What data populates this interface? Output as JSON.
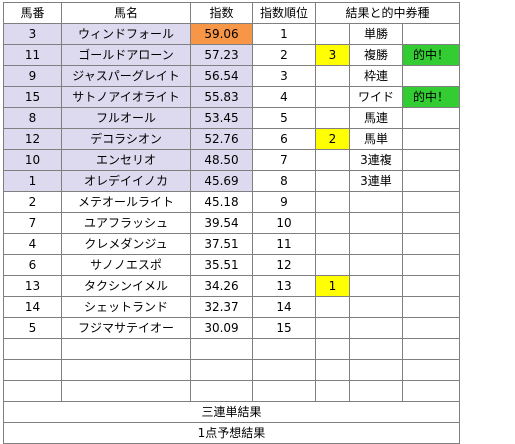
{
  "headers": [
    "馬番",
    "馬名",
    "指数",
    "指数順位",
    "結果と的中券種"
  ],
  "colors": {
    "lavender": "#ddd9ee",
    "orange": "#f79646",
    "yellow": "#ffff00",
    "green": "#33cc33",
    "white": "#ffffff"
  },
  "rows": [
    {
      "num": "3",
      "name": "ウィンドフォール",
      "score": "59.06",
      "rank": "1",
      "result": "",
      "ticket": "単勝",
      "hit": "",
      "highlight": true,
      "score_color": "orange"
    },
    {
      "num": "11",
      "name": "ゴールドアローン",
      "score": "57.23",
      "rank": "2",
      "result": "3",
      "ticket": "複勝",
      "hit": "的中！",
      "highlight": true
    },
    {
      "num": "9",
      "name": "ジャスパーグレイト",
      "score": "56.54",
      "rank": "3",
      "result": "",
      "ticket": "枠連",
      "hit": "",
      "highlight": true
    },
    {
      "num": "15",
      "name": "サトノアイオライト",
      "score": "55.83",
      "rank": "4",
      "result": "",
      "ticket": "ワイド",
      "hit": "的中！",
      "highlight": true
    },
    {
      "num": "8",
      "name": "フルオール",
      "score": "53.45",
      "rank": "5",
      "result": "",
      "ticket": "馬連",
      "hit": "",
      "highlight": true
    },
    {
      "num": "12",
      "name": "デコラシオン",
      "score": "52.76",
      "rank": "6",
      "result": "2",
      "ticket": "馬単",
      "hit": "",
      "highlight": true
    },
    {
      "num": "10",
      "name": "エンセリオ",
      "score": "48.50",
      "rank": "7",
      "result": "",
      "ticket": "3連複",
      "hit": "",
      "highlight": true
    },
    {
      "num": "1",
      "name": "オレデイイノカ",
      "score": "45.69",
      "rank": "8",
      "result": "",
      "ticket": "3連単",
      "hit": "",
      "highlight": true
    },
    {
      "num": "2",
      "name": "メテオールライト",
      "score": "45.18",
      "rank": "9",
      "result": "",
      "ticket": "",
      "hit": "",
      "highlight": false
    },
    {
      "num": "7",
      "name": "ユアフラッシュ",
      "score": "39.54",
      "rank": "10",
      "result": "",
      "ticket": "",
      "hit": "",
      "highlight": false
    },
    {
      "num": "4",
      "name": "クレメダンジュ",
      "score": "37.51",
      "rank": "11",
      "result": "",
      "ticket": "",
      "hit": "",
      "highlight": false
    },
    {
      "num": "6",
      "name": "サノノエスポ",
      "score": "35.51",
      "rank": "12",
      "result": "",
      "ticket": "",
      "hit": "",
      "highlight": false
    },
    {
      "num": "13",
      "name": "タクシンイメル",
      "score": "34.26",
      "rank": "13",
      "result": "1",
      "ticket": "",
      "hit": "",
      "highlight": false
    },
    {
      "num": "14",
      "name": "シェットランド",
      "score": "32.37",
      "rank": "14",
      "result": "",
      "ticket": "",
      "hit": "",
      "highlight": false
    },
    {
      "num": "5",
      "name": "フジマサテイオー",
      "score": "30.09",
      "rank": "15",
      "result": "",
      "ticket": "",
      "hit": "",
      "highlight": false
    },
    {
      "num": "",
      "name": "",
      "score": "",
      "rank": "",
      "result": "",
      "ticket": "",
      "hit": "",
      "highlight": false
    },
    {
      "num": "",
      "name": "",
      "score": "",
      "rank": "",
      "result": "",
      "ticket": "",
      "hit": "",
      "highlight": false
    },
    {
      "num": "",
      "name": "",
      "score": "",
      "rank": "",
      "result": "",
      "ticket": "",
      "hit": "",
      "highlight": false
    }
  ],
  "footer": {
    "trifecta_result": "三連単結果",
    "one_point_prediction": "1点予想結果"
  }
}
